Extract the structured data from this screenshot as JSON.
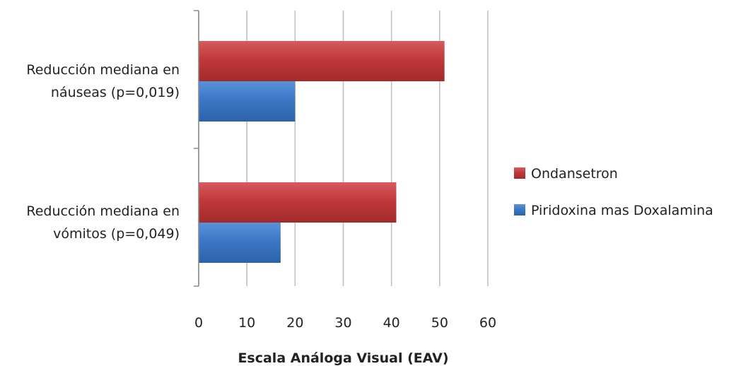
{
  "chart_data": {
    "type": "bar",
    "orientation": "horizontal",
    "categories": [
      [
        "Reducción mediana en",
        "náuseas (p=0,019)"
      ],
      [
        "Reducción mediana en",
        "vómitos (p=0,049)"
      ]
    ],
    "series": [
      {
        "name": "Ondansetron",
        "values": [
          51,
          41
        ],
        "color": "#c0393b"
      },
      {
        "name": "Piridoxina mas Doxalamina",
        "values": [
          20,
          17
        ],
        "color": "#3d78c6"
      }
    ],
    "xlabel": "Escala Análoga Visual (EAV)",
    "xlim": [
      0,
      60
    ],
    "xticks": [
      "0",
      "10",
      "20",
      "30",
      "40",
      "50",
      "60"
    ],
    "grid": true,
    "legend_position": "right"
  }
}
